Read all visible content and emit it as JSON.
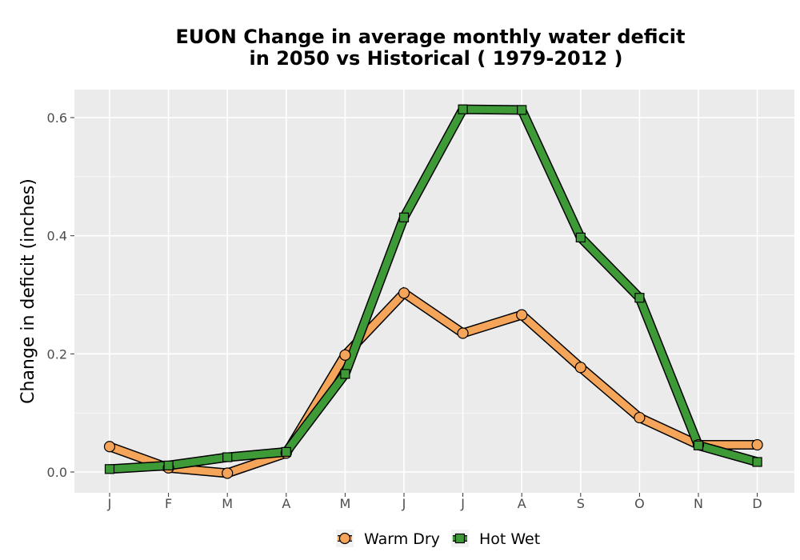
{
  "chart_data": {
    "type": "line",
    "title_line1": "EUON  Change in average monthly water deficit",
    "title_line2": "in 2050 vs Historical ( 1979-2012 )",
    "xlabel": "",
    "ylabel": "Change in deficit (inches)",
    "categories": [
      "J",
      "F",
      "M",
      "A",
      "M",
      "J",
      "J",
      "A",
      "S",
      "O",
      "N",
      "D"
    ],
    "yticks": [
      "0.0",
      "0.2",
      "0.4",
      "0.6"
    ],
    "ylim": [
      -0.03,
      0.65
    ],
    "grid": true,
    "legend_position": "bottom",
    "series": [
      {
        "name": "Warm Dry",
        "color": "#F5A55A",
        "marker": "circle",
        "values": [
          0.043,
          0.007,
          -0.002,
          0.032,
          0.198,
          0.303,
          0.235,
          0.266,
          0.177,
          0.092,
          0.046,
          0.046
        ]
      },
      {
        "name": "Hot Wet",
        "color": "#3E9A36",
        "marker": "square",
        "values": [
          0.005,
          0.011,
          0.025,
          0.034,
          0.166,
          0.431,
          0.614,
          0.613,
          0.397,
          0.295,
          0.045,
          0.017
        ]
      }
    ]
  }
}
